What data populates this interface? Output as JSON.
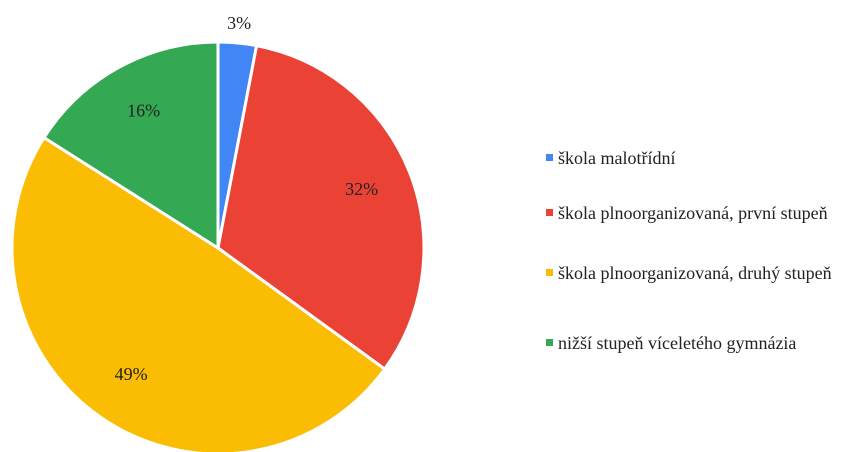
{
  "chart_data": {
    "type": "pie",
    "categories": [
      "škola malotřídní",
      "škola plnoorganizovaná, první stupeň",
      "škola plnoorganizovaná, druhý stupeň",
      "nižší stupeň víceletého gymnázia"
    ],
    "values": [
      3,
      32,
      49,
      16
    ],
    "value_labels": [
      "3%",
      "32%",
      "49%",
      "16%"
    ],
    "colors": [
      "#4285f4",
      "#ea4335",
      "#fbbc04",
      "#34a853"
    ],
    "legend": "right"
  }
}
